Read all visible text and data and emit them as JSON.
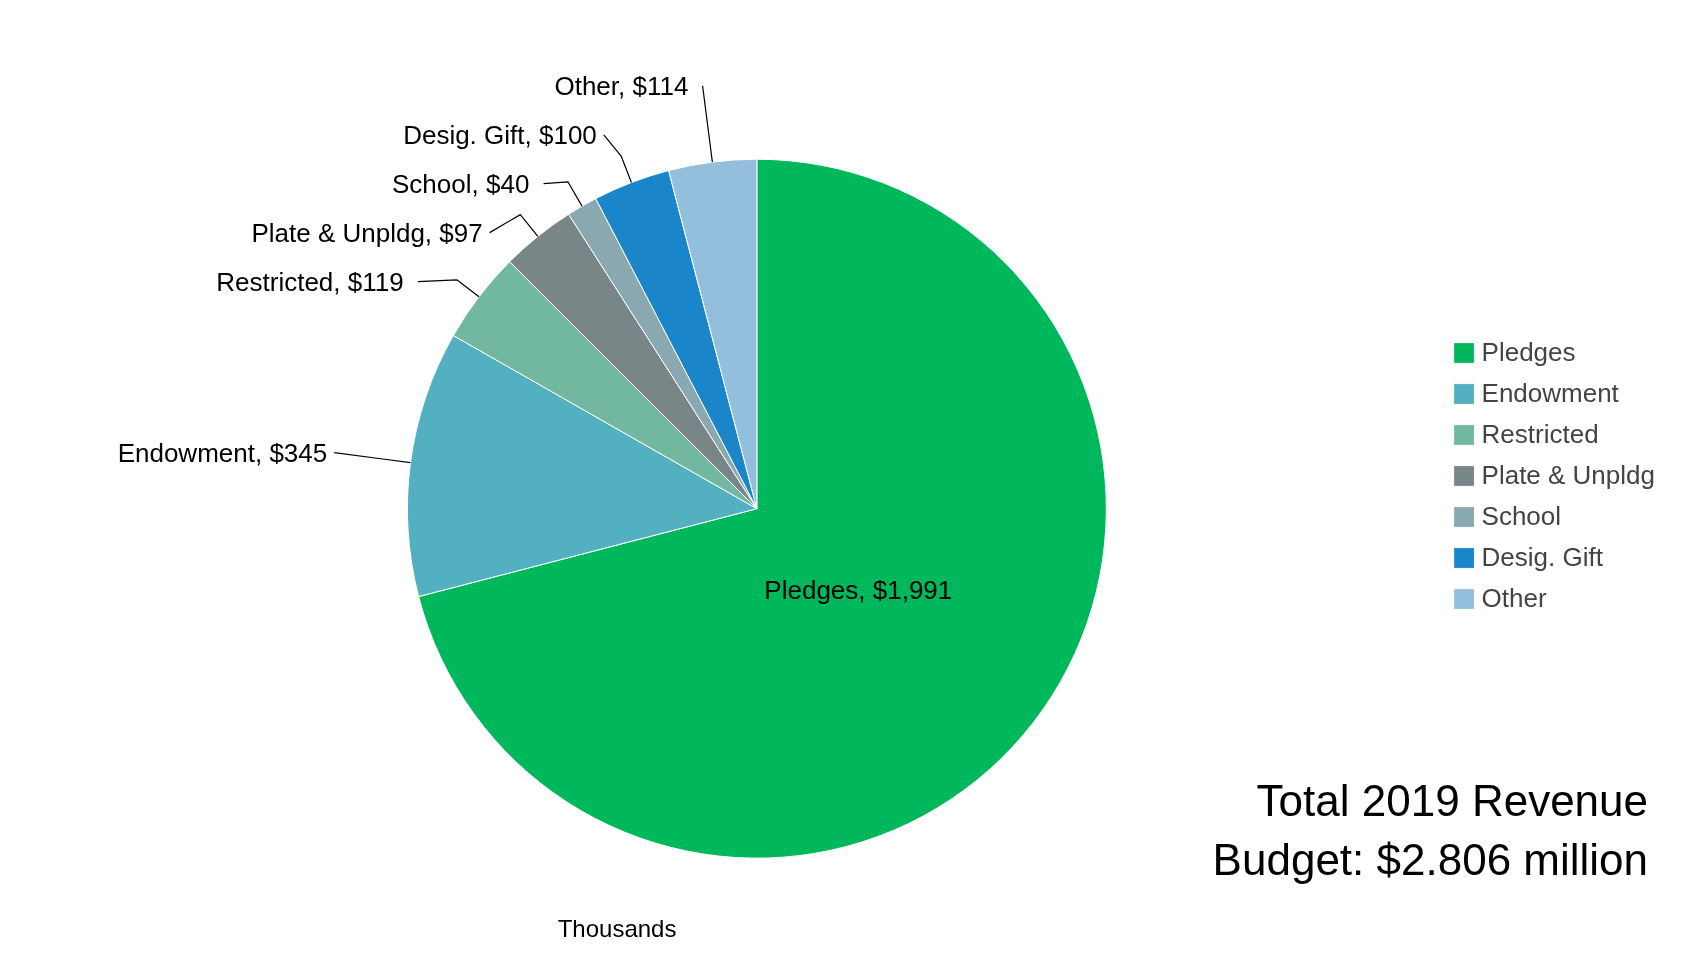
{
  "chart_data": {
    "type": "pie",
    "categories": [
      "Pledges",
      "Endowment",
      "Restricted",
      "Plate & Unpldg",
      "School",
      "Desig. Gift",
      "Other"
    ],
    "values": [
      1991,
      345,
      119,
      97,
      40,
      100,
      114
    ],
    "colors": [
      "#00b85c",
      "#52b0c0",
      "#72b8a0",
      "#788688",
      "#8aa8b0",
      "#1a85c8",
      "#93bfdc"
    ],
    "value_labels": [
      "Pledges,  $1,991",
      "Endowment, $345",
      "Restricted,  $119",
      "Plate & Unpldg, $97",
      "School,  $40",
      "Desig. Gift, $100",
      "Other,  $114"
    ],
    "legend": "right",
    "annotations": [
      "Total 2019 Revenue\nBudget: $2.806 million",
      "Thousands"
    ]
  }
}
